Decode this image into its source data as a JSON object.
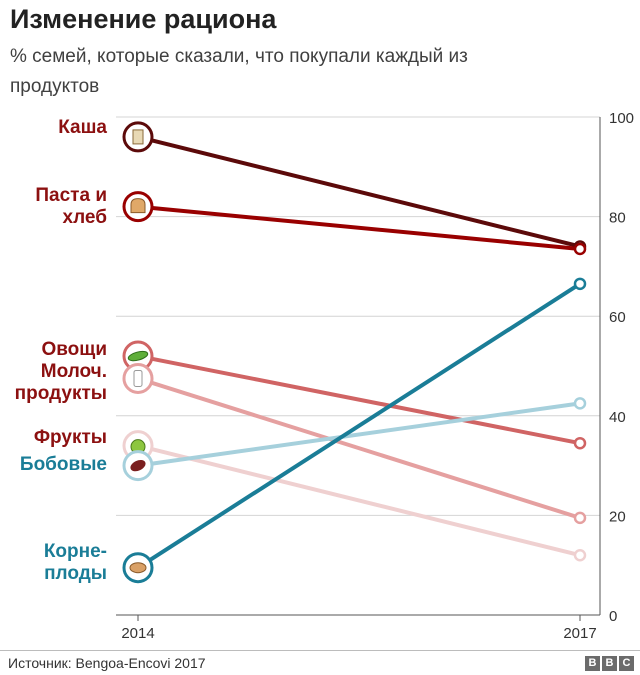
{
  "title": "Изменение рациона",
  "subtitle": "% семей, которые сказали, что покупали каждый из продуктов",
  "source": "Источник: Bengoa-Encovi 2017",
  "brand": [
    "B",
    "B",
    "C"
  ],
  "colors": {
    "kasha": "#5c0a0a",
    "pasta": "#990000",
    "ovoshchi": "#d06464",
    "moloch": "#e5a0a0",
    "frukty": "#efd0d0",
    "bobovye": "#a6d0dc",
    "korneplody": "#1a7d97"
  },
  "chart_data": {
    "type": "line",
    "title": "Изменение рациона",
    "subtitle": "% семей, которые сказали, что покупали каждый из продуктов",
    "x": [
      "2014",
      "2017"
    ],
    "ylim": [
      0,
      100
    ],
    "yticks": [
      0,
      20,
      40,
      60,
      80,
      100
    ],
    "grid": true,
    "series": [
      {
        "name": "Каша",
        "label_lines": [
          "Каша"
        ],
        "values": [
          96,
          74
        ],
        "color": "#5c0a0a",
        "label_color": "#8c1010",
        "icon": "cereal-box-icon"
      },
      {
        "name": "Паста и хлеб",
        "label_lines": [
          "Паста и",
          "хлеб"
        ],
        "values": [
          82,
          73.5
        ],
        "color": "#990000",
        "label_color": "#8c1010",
        "icon": "bread-icon"
      },
      {
        "name": "Овощи",
        "label_lines": [
          "Овощи"
        ],
        "values": [
          52,
          34.5
        ],
        "color": "#d06464",
        "label_color": "#8c1010",
        "icon": "cucumber-icon"
      },
      {
        "name": "Молоч. продукты",
        "label_lines": [
          "Молоч.",
          "продукты"
        ],
        "values": [
          47.5,
          19.5
        ],
        "color": "#e5a0a0",
        "label_color": "#8c1010",
        "icon": "milk-bottle-icon"
      },
      {
        "name": "Фрукты",
        "label_lines": [
          "Фрукты"
        ],
        "values": [
          34,
          12
        ],
        "color": "#efd0d0",
        "label_color": "#8c1010",
        "icon": "apple-icon"
      },
      {
        "name": "Бобовые",
        "label_lines": [
          "Бобовые"
        ],
        "values": [
          30,
          42.5
        ],
        "color": "#a6d0dc",
        "label_color": "#1a7d97",
        "icon": "bean-icon"
      },
      {
        "name": "Корнеплоды",
        "label_lines": [
          "Корне-",
          "плоды"
        ],
        "values": [
          9.5,
          66.5
        ],
        "color": "#1a7d97",
        "label_color": "#1a7d97",
        "icon": "root-vegetable-icon"
      }
    ]
  }
}
